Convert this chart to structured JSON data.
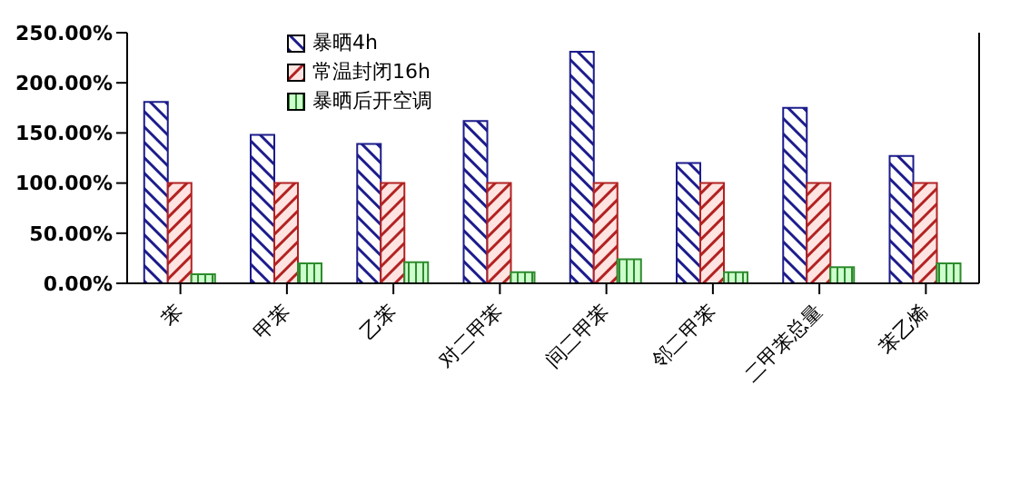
{
  "chart_data": {
    "type": "bar",
    "categories": [
      "苯",
      "甲苯",
      "乙苯",
      "对二甲苯",
      "间二甲苯",
      "邻二甲苯",
      "二甲苯总量",
      "苯乙烯"
    ],
    "series": [
      {
        "name": "暴晒4h",
        "color": "#1c1c8c",
        "values": [
          181,
          148,
          139,
          162,
          231,
          120,
          175,
          127
        ]
      },
      {
        "name": "常温封闭16h",
        "color": "#b22222",
        "values": [
          100,
          100,
          100,
          100,
          100,
          100,
          100,
          100
        ]
      },
      {
        "name": "暴晒后开空调",
        "color": "#2e8b2e",
        "values": [
          9,
          20,
          21,
          11,
          24,
          11,
          16,
          20
        ]
      }
    ],
    "ylim": [
      0,
      250
    ],
    "yticks": [
      {
        "value": 0,
        "label": "0.00%"
      },
      {
        "value": 50,
        "label": "50.00%"
      },
      {
        "value": 100,
        "label": "100.00%"
      },
      {
        "value": 150,
        "label": "150.00%"
      },
      {
        "value": 200,
        "label": "200.00%"
      },
      {
        "value": 250,
        "label": "250.00%"
      }
    ],
    "grid": false,
    "legend": "top left"
  }
}
